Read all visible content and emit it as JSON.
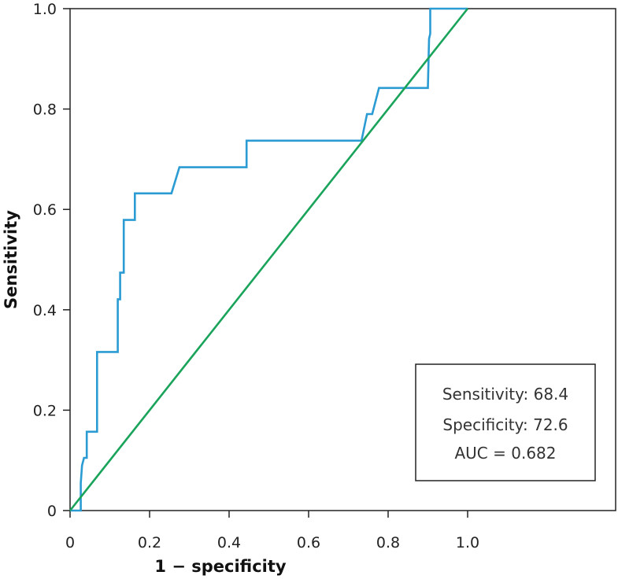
{
  "chart_data": {
    "type": "line",
    "title": "",
    "xlabel": "1 − specificity",
    "ylabel": "Sensitivity",
    "xlim": [
      0,
      1.0
    ],
    "ylim": [
      0,
      1.0
    ],
    "x_ticks": [
      0,
      0.2,
      0.4,
      0.6,
      0.8,
      1.0
    ],
    "x_tick_labels": [
      "0",
      "0.2",
      "0.4",
      "0.6",
      "0.8",
      "1.0"
    ],
    "y_ticks": [
      0,
      0.2,
      0.4,
      0.6,
      0.8,
      1.0
    ],
    "y_tick_labels": [
      "0",
      "0.2",
      "0.4",
      "0.6",
      "0.8",
      "1.0"
    ],
    "grid": false,
    "series": [
      {
        "color": "#2b9bd3",
        "x": [
          0,
          0.027,
          0.027,
          0.03,
          0.035,
          0.035,
          0.042,
          0.042,
          0.055,
          0.055,
          0.068,
          0.068,
          0.12,
          0.12,
          0.126,
          0.126,
          0.135,
          0.135,
          0.144,
          0.144,
          0.163,
          0.163,
          0.255,
          0.275,
          0.444,
          0.444,
          0.733,
          0.747,
          0.747,
          0.76,
          0.777,
          0.777,
          0.9,
          0.903,
          0.906,
          0.906,
          1.0
        ],
        "y": [
          0,
          0,
          0.055,
          0.09,
          0.105,
          0.105,
          0.105,
          0.157,
          0.157,
          0.157,
          0.157,
          0.316,
          0.316,
          0.421,
          0.421,
          0.474,
          0.474,
          0.579,
          0.579,
          0.579,
          0.579,
          0.632,
          0.632,
          0.684,
          0.684,
          0.737,
          0.737,
          0.79,
          0.79,
          0.79,
          0.842,
          0.842,
          0.842,
          0.94,
          0.95,
          1.0,
          1.0
        ]
      },
      {
        "color": "#1aa35a",
        "x": [
          0,
          1.0
        ],
        "y": [
          0,
          1.0
        ]
      }
    ],
    "annotations": [
      "Sensitivity: 68.4",
      "Specificity: 72.6",
      "AUC = 0.682"
    ]
  }
}
